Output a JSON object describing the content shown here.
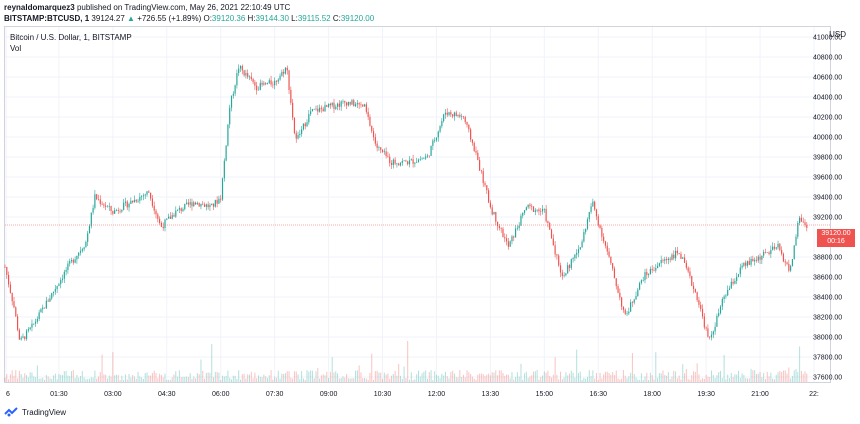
{
  "header": {
    "publisher": "reynaldomarquez3",
    "published_text": "published on TradingView.com, May 26, 2021 22:10:49 UTC",
    "symbol": "BITSTAMP:BTCUSD, 1",
    "last": "39124.27",
    "change_arrow": "▲",
    "change": "+726.55 (+1.89%)",
    "o_label": "O:",
    "o_value": "39120.36",
    "h_label": "H:",
    "h_value": "39144.30",
    "l_label": "L:",
    "l_value": "39115.52",
    "c_label": "C:",
    "c_value": "39120.00"
  },
  "legend": {
    "title": "Bitcoin / U.S. Dollar, 1, BITSTAMP",
    "volume_label": "Vol"
  },
  "axis": {
    "currency": "USD",
    "price_ticks": [
      "41000.00",
      "40800.00",
      "40600.00",
      "40400.00",
      "40200.00",
      "40000.00",
      "39800.00",
      "39600.00",
      "39400.00",
      "39200.00",
      "38800.00",
      "38600.00",
      "38400.00",
      "38200.00",
      "38000.00",
      "37800.00",
      "37600.00"
    ],
    "time_ticks": [
      "6",
      "01:30",
      "03:00",
      "04:30",
      "06:00",
      "07:30",
      "09:00",
      "10:30",
      "12:00",
      "13:30",
      "15:00",
      "16:30",
      "18:00",
      "19:30",
      "21:00",
      "22:"
    ]
  },
  "price_label": {
    "price": "39120.00",
    "countdown": "00:16"
  },
  "footer": {
    "brand": "TradingView",
    "logo_icon": "tradingview-logo-icon"
  },
  "colors": {
    "up": "#26a69a",
    "down": "#ef5350",
    "grid": "#f0f3fa",
    "text": "#131722"
  },
  "chart_data": {
    "type": "candlestick",
    "interval": "1 minute",
    "y_range": [
      37550,
      41100
    ],
    "x_ticks": [
      "6",
      "01:30",
      "03:00",
      "04:30",
      "06:00",
      "07:30",
      "09:00",
      "10:30",
      "12:00",
      "13:30",
      "15:00",
      "16:30",
      "18:00",
      "19:30",
      "21:00",
      "22:"
    ],
    "last_price": 39120.0,
    "close_path": [
      {
        "t": "00:00",
        "p": 38700
      },
      {
        "t": "00:15",
        "p": 38300
      },
      {
        "t": "00:25",
        "p": 37950
      },
      {
        "t": "00:45",
        "p": 38100
      },
      {
        "t": "01:15",
        "p": 38400
      },
      {
        "t": "01:45",
        "p": 38700
      },
      {
        "t": "02:15",
        "p": 38950
      },
      {
        "t": "02:30",
        "p": 39400
      },
      {
        "t": "03:00",
        "p": 39250
      },
      {
        "t": "03:30",
        "p": 39350
      },
      {
        "t": "04:00",
        "p": 39450
      },
      {
        "t": "04:20",
        "p": 39100
      },
      {
        "t": "04:45",
        "p": 39250
      },
      {
        "t": "05:15",
        "p": 39350
      },
      {
        "t": "05:45",
        "p": 39300
      },
      {
        "t": "06:00",
        "p": 39400
      },
      {
        "t": "06:15",
        "p": 40300
      },
      {
        "t": "06:30",
        "p": 40700
      },
      {
        "t": "07:00",
        "p": 40500
      },
      {
        "t": "07:30",
        "p": 40550
      },
      {
        "t": "07:50",
        "p": 40700
      },
      {
        "t": "08:05",
        "p": 39950
      },
      {
        "t": "08:30",
        "p": 40250
      },
      {
        "t": "09:00",
        "p": 40300
      },
      {
        "t": "09:30",
        "p": 40350
      },
      {
        "t": "10:00",
        "p": 40300
      },
      {
        "t": "10:20",
        "p": 39900
      },
      {
        "t": "10:45",
        "p": 39750
      },
      {
        "t": "11:15",
        "p": 39750
      },
      {
        "t": "11:45",
        "p": 39800
      },
      {
        "t": "12:15",
        "p": 40250
      },
      {
        "t": "12:45",
        "p": 40200
      },
      {
        "t": "13:05",
        "p": 39850
      },
      {
        "t": "13:30",
        "p": 39300
      },
      {
        "t": "14:00",
        "p": 38900
      },
      {
        "t": "14:30",
        "p": 39300
      },
      {
        "t": "15:00",
        "p": 39250
      },
      {
        "t": "15:30",
        "p": 38600
      },
      {
        "t": "16:00",
        "p": 38900
      },
      {
        "t": "16:20",
        "p": 39350
      },
      {
        "t": "16:45",
        "p": 38850
      },
      {
        "t": "17:15",
        "p": 38200
      },
      {
        "t": "17:45",
        "p": 38600
      },
      {
        "t": "18:15",
        "p": 38750
      },
      {
        "t": "18:45",
        "p": 38850
      },
      {
        "t": "19:15",
        "p": 38400
      },
      {
        "t": "19:35",
        "p": 37950
      },
      {
        "t": "20:00",
        "p": 38400
      },
      {
        "t": "20:30",
        "p": 38700
      },
      {
        "t": "21:00",
        "p": 38800
      },
      {
        "t": "21:30",
        "p": 38900
      },
      {
        "t": "21:50",
        "p": 38650
      },
      {
        "t": "22:05",
        "p": 39200
      },
      {
        "t": "22:15",
        "p": 39120
      }
    ]
  }
}
